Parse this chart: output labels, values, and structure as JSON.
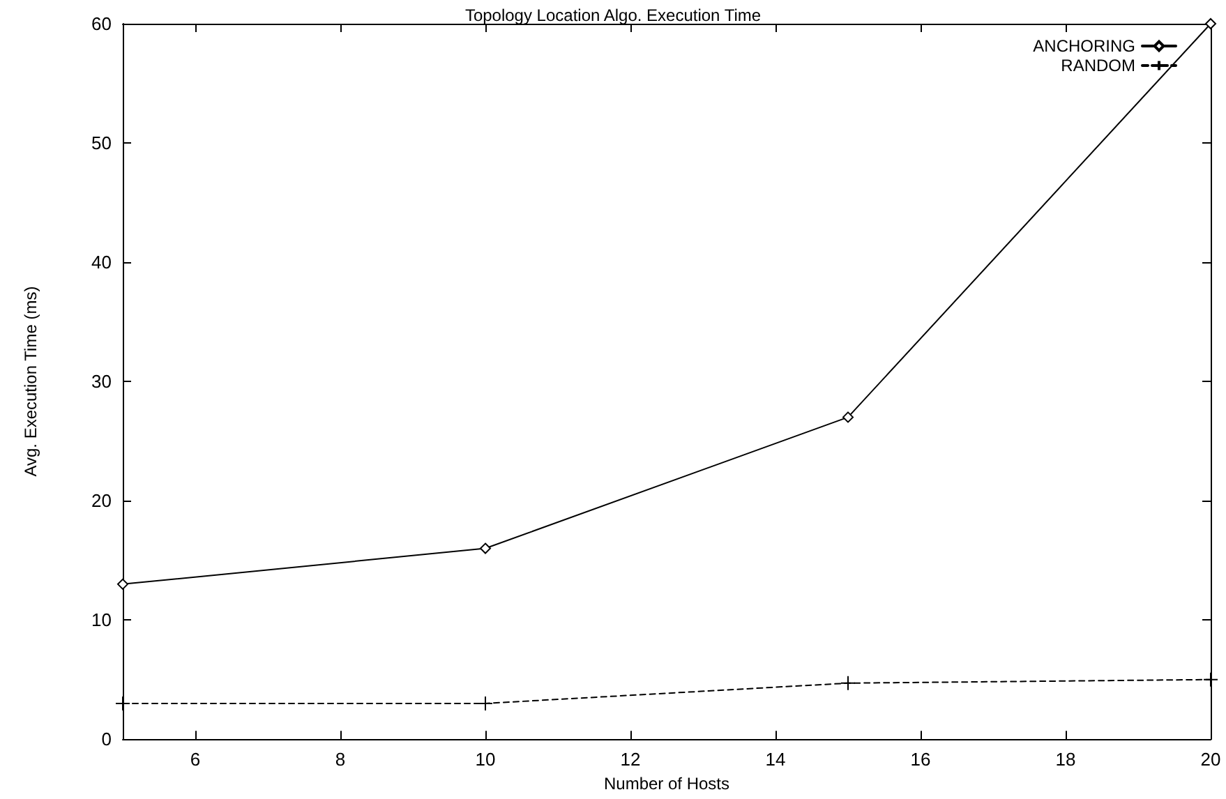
{
  "chart_data": {
    "type": "line",
    "title": "Topology Location Algo. Execution Time",
    "xlabel": "Number of Hosts",
    "ylabel": "Avg. Execution Time (ms)",
    "x": [
      5,
      10,
      15,
      20
    ],
    "series": [
      {
        "name": "ANCHORING",
        "color": "#000000",
        "values": [
          13,
          16,
          27,
          60
        ],
        "marker": "diamond",
        "line_style": "solid"
      },
      {
        "name": "RANDOM",
        "color": "#000000",
        "values": [
          3.0,
          3.0,
          4.7,
          5.0
        ],
        "marker": "cross",
        "line_style": "dashed"
      }
    ],
    "xlim": [
      5,
      20
    ],
    "xticks": [
      6,
      8,
      10,
      12,
      14,
      16,
      18,
      20
    ],
    "ylim": [
      0,
      60
    ],
    "yticks": [
      0,
      10,
      20,
      30,
      40,
      50,
      60
    ],
    "grid": false,
    "legend": "top right"
  }
}
